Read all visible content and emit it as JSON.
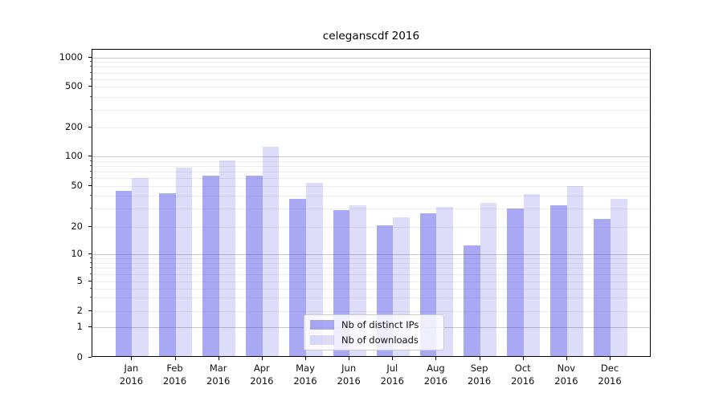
{
  "chart_data": {
    "type": "bar",
    "title": "celeganscdf 2016",
    "categories": [
      "Jan 2016",
      "Feb 2016",
      "Mar 2016",
      "Apr 2016",
      "May 2016",
      "Jun 2016",
      "Jul 2016",
      "Aug 2016",
      "Sep 2016",
      "Oct 2016",
      "Nov 2016",
      "Dec 2016"
    ],
    "month_labels": [
      "Jan",
      "Feb",
      "Mar",
      "Apr",
      "May",
      "Jun",
      "Jul",
      "Aug",
      "Sep",
      "Oct",
      "Nov",
      "Dec"
    ],
    "year_label": "2016",
    "series": [
      {
        "name": "Nb of distinct IPs",
        "color": "rgba(55,55,228,0.43)",
        "approx_hex_on_white": "#a9a9f0",
        "values": [
          43,
          41,
          62,
          62,
          36,
          28,
          20,
          26,
          12,
          29,
          31,
          23
        ]
      },
      {
        "name": "Nb of downloads",
        "color": "rgba(55,55,228,0.17)",
        "approx_hex_on_white": "#dedefa",
        "values": [
          58,
          75,
          88,
          122,
          52,
          31,
          24,
          30,
          33,
          40,
          48,
          36
        ]
      }
    ],
    "xlabel": "",
    "ylabel": "",
    "y_scale": "symlog",
    "y_ticks": [
      0,
      1,
      2,
      5,
      10,
      20,
      50,
      100,
      200,
      500,
      1000
    ],
    "y_major_grid": [
      1,
      10,
      100,
      1000
    ],
    "y_minor_grid": [
      2,
      3,
      4,
      5,
      6,
      7,
      8,
      9,
      20,
      30,
      40,
      50,
      60,
      70,
      80,
      90,
      200,
      300,
      400,
      500,
      600,
      700,
      800,
      900
    ],
    "ylim": [
      0,
      1200
    ],
    "grid": true,
    "legend": {
      "position": "lower center",
      "entries": [
        "Nb of distinct IPs",
        "Nb of downloads"
      ]
    },
    "colors": {
      "background": "#ffffff",
      "axis": "#000000",
      "major_grid": "#c9c9c9",
      "minor_grid": "#ededed",
      "tick_label": "#111111",
      "legend_border": "#cccccc"
    }
  }
}
